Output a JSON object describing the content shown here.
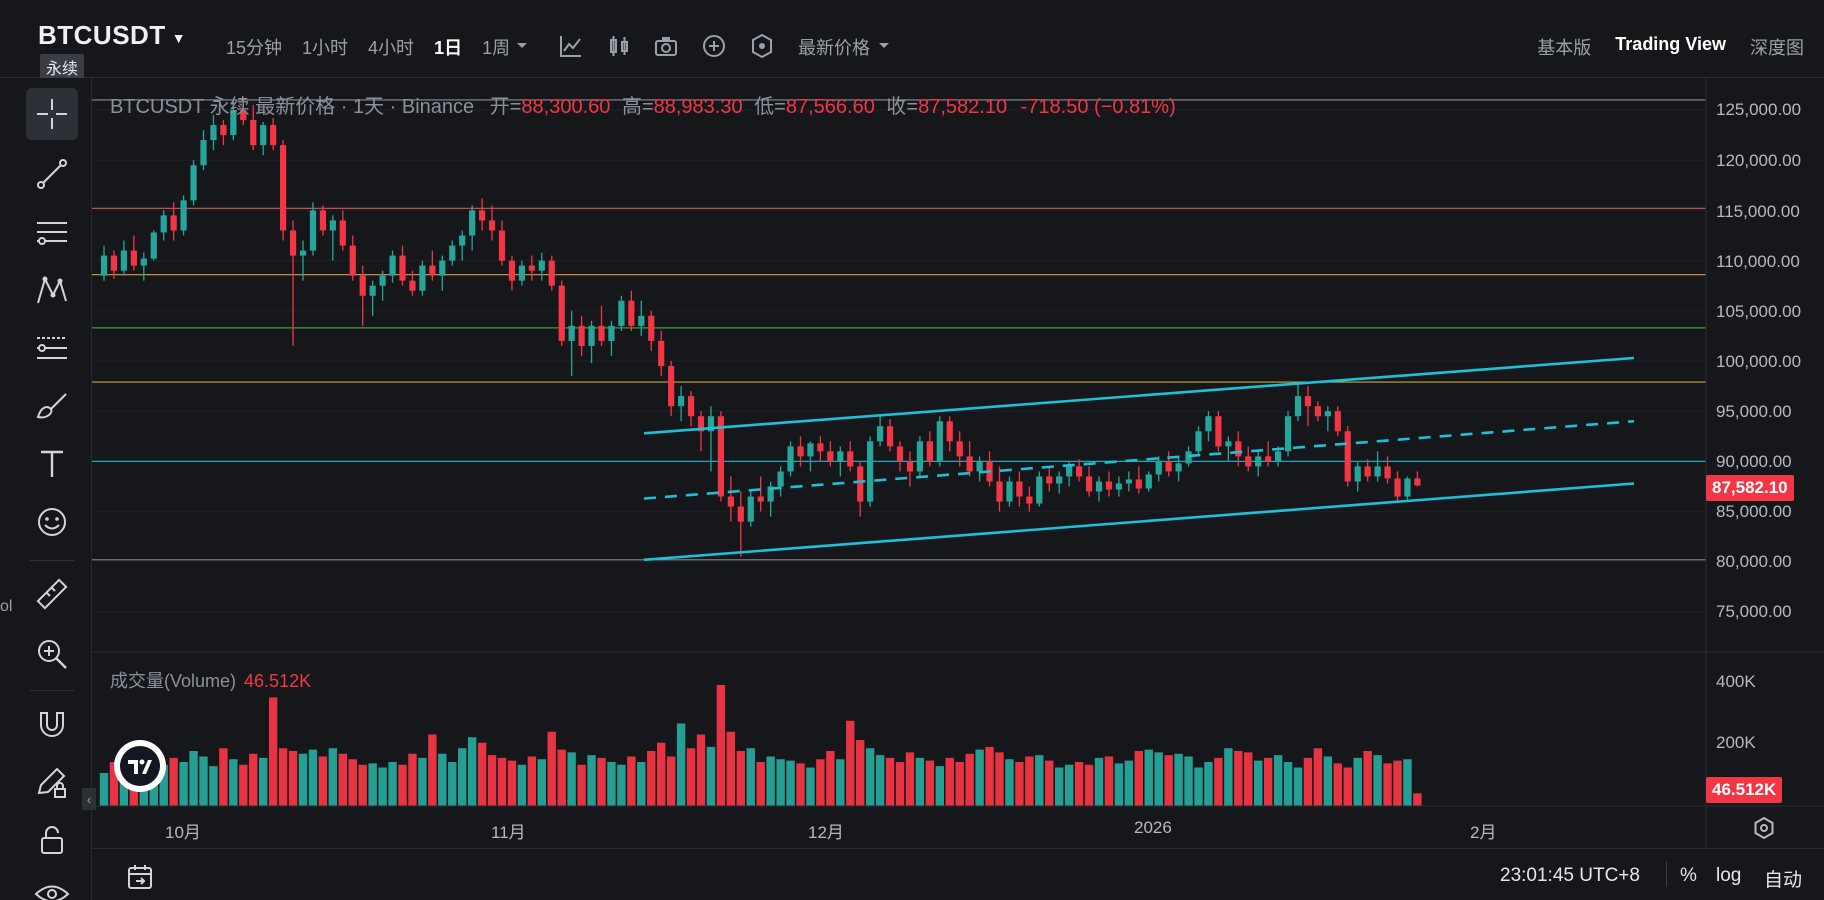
{
  "header": {
    "symbol": "BTCUSDT",
    "perp_badge": "永续",
    "timeframes": [
      "15分钟",
      "1小时",
      "4小时",
      "1日",
      "1周"
    ],
    "active_timeframe": "1日",
    "price_type": "最新价格",
    "views": [
      "基本版",
      "Trading View",
      "深度图"
    ],
    "active_view": "Trading View"
  },
  "left_toolbar": {
    "tools": [
      "crosshair-icon",
      "trend-line-icon",
      "horizontal-lines-icon",
      "pattern-icon",
      "fib-icon",
      "brush-icon",
      "text-icon",
      "emoji-icon",
      "ruler-icon",
      "zoom-in-icon",
      "magnet-icon",
      "lock-drawing-icon",
      "lock-icon",
      "eye-icon"
    ],
    "edge_text": "ol"
  },
  "legend": {
    "title": "BTCUSDT 永续 最新价格 · 1天 · Binance",
    "open_label": "开=",
    "open": "88,300.60",
    "high_label": "高=",
    "high": "88,983.30",
    "low_label": "低=",
    "low": "87,566.60",
    "close_label": "收=",
    "close": "87,582.10",
    "change": "-718.50 (−0.81%)"
  },
  "volume_legend": {
    "label": "成交量(Volume)",
    "value": "46.512K"
  },
  "price_axis": {
    "ticks": [
      "125,000.00",
      "120,000.00",
      "115,000.00",
      "110,000.00",
      "105,000.00",
      "100,000.00",
      "95,000.00",
      "90,000.00",
      "85,000.00",
      "80,000.00",
      "75,000.00"
    ],
    "current_price": "87,582.10"
  },
  "volume_axis": {
    "ticks": [
      "400K",
      "200K"
    ],
    "current_volume": "46.512K"
  },
  "time_axis": {
    "ticks": [
      "10月",
      "11月",
      "12月",
      "2026",
      "2月"
    ]
  },
  "bottom_bar": {
    "clock": "23:01:45 UTC+8",
    "percent": "%",
    "log": "log",
    "auto": "自动"
  },
  "colors": {
    "up": "#26a69a",
    "down": "#f23645",
    "channel": "#1ec0d8",
    "background": "#16171b"
  },
  "chart_data": {
    "type": "candlestick",
    "title": "BTCUSDT 永续 最新价格 · 1天 · Binance",
    "ylim": [
      72000,
      127000
    ],
    "y_ticks": [
      75000,
      80000,
      85000,
      90000,
      95000,
      100000,
      105000,
      110000,
      115000,
      120000,
      125000
    ],
    "horizontal_levels": [
      {
        "price": 126000,
        "color": "#9aa0ab"
      },
      {
        "price": 115200,
        "color": "#e05a5a"
      },
      {
        "price": 108600,
        "color": "#e6a33a"
      },
      {
        "price": 103300,
        "color": "#4caf50"
      },
      {
        "price": 97900,
        "color": "#e6c53a"
      },
      {
        "price": 90000,
        "color": "#1ec0d8"
      },
      {
        "price": 80200,
        "color": "#9aa0ab"
      }
    ],
    "channel": {
      "upper": [
        [
          0.0,
          92800
        ],
        [
          1.0,
          100300
        ]
      ],
      "middle": [
        [
          0.0,
          86300
        ],
        [
          1.0,
          94000
        ]
      ],
      "lower": [
        [
          0.0,
          80200
        ],
        [
          1.0,
          87800
        ]
      ]
    },
    "candles": [
      [
        108500,
        111500,
        108000,
        110500
      ],
      [
        110500,
        111000,
        108200,
        109000
      ],
      [
        109000,
        112000,
        108500,
        111000
      ],
      [
        111000,
        112500,
        109000,
        109500
      ],
      [
        109500,
        110800,
        108000,
        110200
      ],
      [
        110200,
        113000,
        110000,
        112800
      ],
      [
        112800,
        115000,
        112000,
        114500
      ],
      [
        114500,
        115800,
        112000,
        113000
      ],
      [
        113000,
        116500,
        112500,
        116000
      ],
      [
        116000,
        120000,
        115500,
        119500
      ],
      [
        119500,
        123000,
        119000,
        122000
      ],
      [
        122000,
        124500,
        121000,
        123500
      ],
      [
        123500,
        124000,
        121500,
        122500
      ],
      [
        122500,
        126000,
        122000,
        125000
      ],
      [
        125000,
        126200,
        123500,
        124000
      ],
      [
        124000,
        125500,
        121000,
        121500
      ],
      [
        121500,
        123800,
        120500,
        123500
      ],
      [
        123500,
        124200,
        121000,
        121500
      ],
      [
        121500,
        122000,
        112000,
        113000
      ],
      [
        113000,
        114000,
        101500,
        110500
      ],
      [
        110500,
        112000,
        108000,
        111000
      ],
      [
        111000,
        115800,
        110500,
        115000
      ],
      [
        115000,
        115500,
        112500,
        113000
      ],
      [
        113000,
        114500,
        110000,
        114000
      ],
      [
        114000,
        115000,
        111000,
        111500
      ],
      [
        111500,
        112500,
        108000,
        108500
      ],
      [
        108500,
        109500,
        103500,
        106500
      ],
      [
        106500,
        108000,
        104500,
        107500
      ],
      [
        107500,
        109000,
        106000,
        108500
      ],
      [
        108500,
        111000,
        107800,
        110500
      ],
      [
        110500,
        111500,
        107500,
        108000
      ],
      [
        108000,
        109000,
        106500,
        107000
      ],
      [
        107000,
        110000,
        106500,
        109500
      ],
      [
        109500,
        111000,
        108000,
        108500
      ],
      [
        108500,
        110500,
        107000,
        110000
      ],
      [
        110000,
        112000,
        109500,
        111500
      ],
      [
        111500,
        113000,
        110000,
        112500
      ],
      [
        112500,
        115500,
        111000,
        115000
      ],
      [
        115000,
        116200,
        113000,
        114000
      ],
      [
        114000,
        115500,
        112000,
        113000
      ],
      [
        113000,
        114000,
        109500,
        110000
      ],
      [
        110000,
        110500,
        107000,
        108000
      ],
      [
        108000,
        110000,
        107500,
        109500
      ],
      [
        109500,
        110500,
        108000,
        109000
      ],
      [
        109000,
        110800,
        108000,
        110000
      ],
      [
        110000,
        110500,
        107000,
        107500
      ],
      [
        107500,
        108000,
        101500,
        102000
      ],
      [
        102000,
        105000,
        98500,
        103500
      ],
      [
        103500,
        104500,
        100500,
        101500
      ],
      [
        101500,
        104000,
        99800,
        103500
      ],
      [
        103500,
        105500,
        101500,
        102000
      ],
      [
        102000,
        104000,
        100500,
        103500
      ],
      [
        103500,
        106500,
        103000,
        106000
      ],
      [
        106000,
        107000,
        103000,
        103500
      ],
      [
        103500,
        106000,
        102500,
        104500
      ],
      [
        104500,
        105000,
        101000,
        102000
      ],
      [
        102000,
        103000,
        98500,
        99500
      ],
      [
        99500,
        100000,
        94500,
        95500
      ],
      [
        95500,
        97500,
        94000,
        96500
      ],
      [
        96500,
        97000,
        93500,
        94500
      ],
      [
        94500,
        95000,
        91000,
        93000
      ],
      [
        93000,
        95500,
        89000,
        94500
      ],
      [
        94500,
        95000,
        86000,
        86500
      ],
      [
        86500,
        88500,
        84000,
        85500
      ],
      [
        85500,
        87000,
        80500,
        84000
      ],
      [
        84000,
        87000,
        83500,
        86500
      ],
      [
        86500,
        88500,
        85000,
        86000
      ],
      [
        86000,
        88000,
        84500,
        87500
      ],
      [
        87500,
        89500,
        86500,
        89000
      ],
      [
        89000,
        92000,
        88500,
        91500
      ],
      [
        91500,
        92500,
        89500,
        90500
      ],
      [
        90500,
        92000,
        89000,
        91800
      ],
      [
        91800,
        92500,
        90000,
        91000
      ],
      [
        91000,
        92000,
        89500,
        90000
      ],
      [
        90000,
        91500,
        88500,
        91000
      ],
      [
        91000,
        92000,
        89000,
        89500
      ],
      [
        89500,
        90000,
        84500,
        86000
      ],
      [
        86000,
        92500,
        85500,
        92000
      ],
      [
        92000,
        94500,
        91500,
        93500
      ],
      [
        93500,
        94200,
        91000,
        91500
      ],
      [
        91500,
        92000,
        89000,
        90000
      ],
      [
        90000,
        91000,
        87500,
        89000
      ],
      [
        89000,
        92500,
        88500,
        92000
      ],
      [
        92000,
        93000,
        89500,
        90000
      ],
      [
        90000,
        94500,
        89500,
        94000
      ],
      [
        94000,
        94500,
        91000,
        92000
      ],
      [
        92000,
        93000,
        89500,
        90500
      ],
      [
        90500,
        92000,
        88500,
        89000
      ],
      [
        89000,
        90500,
        88000,
        90000
      ],
      [
        90000,
        91000,
        87500,
        88000
      ],
      [
        88000,
        89500,
        85000,
        86000
      ],
      [
        86000,
        88500,
        85500,
        88000
      ],
      [
        88000,
        89000,
        85500,
        86500
      ],
      [
        86500,
        87500,
        85000,
        85800
      ],
      [
        85800,
        89000,
        85500,
        88500
      ],
      [
        88500,
        89500,
        87000,
        87800
      ],
      [
        87800,
        89000,
        86800,
        88500
      ],
      [
        88500,
        90000,
        87500,
        89500
      ],
      [
        89500,
        90200,
        88000,
        88500
      ],
      [
        88500,
        89500,
        86500,
        87000
      ],
      [
        87000,
        88500,
        86000,
        88000
      ],
      [
        88000,
        89000,
        86500,
        87200
      ],
      [
        87200,
        88500,
        86500,
        87800
      ],
      [
        87800,
        89000,
        87000,
        88200
      ],
      [
        88200,
        89500,
        86800,
        87300
      ],
      [
        87300,
        89000,
        87000,
        88700
      ],
      [
        88700,
        90500,
        88000,
        90000
      ],
      [
        90000,
        91000,
        88500,
        89000
      ],
      [
        89000,
        90500,
        88000,
        89800
      ],
      [
        89800,
        91500,
        89500,
        91000
      ],
      [
        91000,
        93500,
        90500,
        93000
      ],
      [
        93000,
        95000,
        92000,
        94500
      ],
      [
        94500,
        95000,
        91000,
        91500
      ],
      [
        91500,
        92500,
        90000,
        92000
      ],
      [
        92000,
        93000,
        89500,
        90500
      ],
      [
        90500,
        91500,
        89000,
        89500
      ],
      [
        89500,
        91000,
        88500,
        90500
      ],
      [
        90500,
        92000,
        89500,
        90000
      ],
      [
        90000,
        91500,
        89500,
        91000
      ],
      [
        91000,
        95000,
        90500,
        94500
      ],
      [
        94500,
        98000,
        94000,
        96500
      ],
      [
        96500,
        97500,
        93500,
        95500
      ],
      [
        95500,
        96000,
        94000,
        94500
      ],
      [
        94500,
        95500,
        93000,
        95000
      ],
      [
        95000,
        95500,
        92500,
        93000
      ],
      [
        93000,
        93500,
        87500,
        88000
      ],
      [
        88000,
        90000,
        87000,
        89500
      ],
      [
        89500,
        90200,
        88000,
        88500
      ],
      [
        88500,
        91000,
        88000,
        89500
      ],
      [
        89500,
        90500,
        87800,
        88300
      ],
      [
        88300,
        89000,
        86000,
        86500
      ],
      [
        86500,
        88500,
        86200,
        88300
      ],
      [
        88300,
        89000,
        87500,
        87600
      ]
    ],
    "volume": [
      120,
      160,
      145,
      170,
      140,
      155,
      150,
      175,
      160,
      200,
      180,
      145,
      210,
      170,
      150,
      190,
      175,
      395,
      210,
      200,
      190,
      205,
      180,
      210,
      190,
      170,
      150,
      155,
      140,
      160,
      150,
      190,
      175,
      260,
      190,
      160,
      210,
      250,
      230,
      185,
      175,
      165,
      150,
      180,
      170,
      270,
      205,
      195,
      150,
      185,
      175,
      160,
      150,
      180,
      160,
      200,
      230,
      180,
      300,
      210,
      260,
      215,
      440,
      270,
      200,
      210,
      160,
      180,
      170,
      165,
      155,
      140,
      170,
      200,
      170,
      310,
      240,
      210,
      185,
      175,
      160,
      195,
      175,
      165,
      145,
      175,
      160,
      190,
      205,
      215,
      195,
      170,
      160,
      180,
      185,
      165,
      140,
      150,
      160,
      150,
      175,
      180,
      155,
      165,
      200,
      205,
      195,
      185,
      190,
      180,
      140,
      160,
      175,
      210,
      200,
      195,
      165,
      175,
      185,
      160,
      140,
      175,
      210,
      180,
      155,
      140,
      175,
      200,
      185,
      155,
      165,
      170,
      46
    ]
  }
}
